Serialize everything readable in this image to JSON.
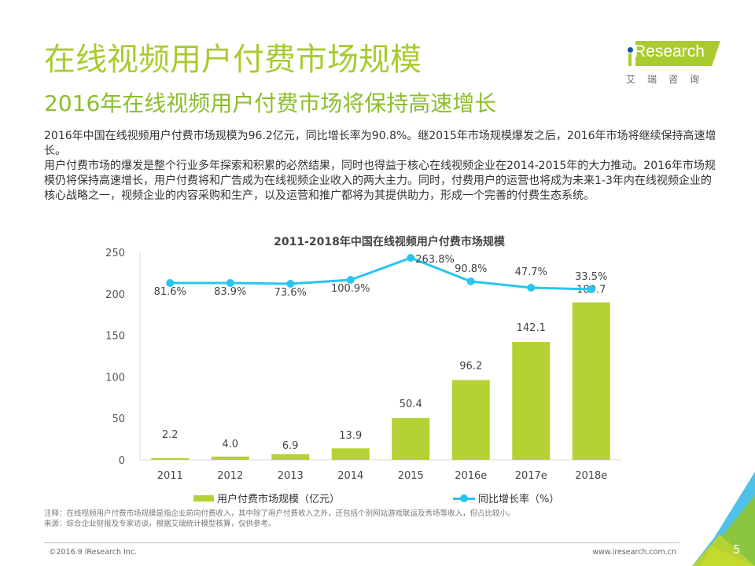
{
  "header": {
    "title": "在线视频用户付费市场规模",
    "subtitle": "2016年在线视频用户付费市场将保持高速增长"
  },
  "logo": {
    "text": "Research",
    "i_letter": "i",
    "cn": "艾瑞咨询",
    "icon": "iresearch-logo-icon"
  },
  "body": {
    "paragraphs": [
      "2016年中国在线视频用户付费市场规模为96.2亿元，同比增长率为90.8%。继2015年市场规模爆发之后，2016年市场将继续保持高速增长。",
      "用户付费市场的爆发是整个行业多年探索和积累的必然结果，同时也得益于核心在线视频企业在2014-2015年的大力推动。2016年市场规模仍将保持高速增长，用户付费将和广告成为在线视频企业收入的两大主力。同时，付费用户的运营也将成为未来1-3年内在线视频企业的核心战略之一，视频企业的内容采购和生产，以及运营和推广都将为其提供助力，形成一个完善的付费生态系统。"
    ]
  },
  "chart_data": {
    "type": "bar",
    "title": "2011-2018年中国在线视频用户付费市场规模",
    "categories": [
      "2011",
      "2012",
      "2013",
      "2014",
      "2015",
      "2016e",
      "2017e",
      "2018e"
    ],
    "series": [
      {
        "name": "用户付费市场规模（亿元）",
        "type": "bar",
        "color": "#b4d234",
        "values": [
          2.2,
          4.0,
          6.9,
          13.9,
          50.4,
          96.2,
          142.1,
          189.7
        ],
        "labels": [
          "2.2",
          "4.0",
          "6.9",
          "13.9",
          "50.4",
          "96.2",
          "142.1",
          "189.7"
        ]
      },
      {
        "name": "同比增长率（%）",
        "type": "line",
        "color": "#29c5ef",
        "values": [
          81.6,
          83.9,
          73.6,
          100.9,
          263.8,
          90.8,
          47.7,
          33.5
        ],
        "labels": [
          "81.6%",
          "83.9%",
          "73.6%",
          "100.9%",
          "263.8%",
          "90.8%",
          "47.7%",
          "33.5%"
        ]
      }
    ],
    "y_axis": {
      "ticks": [
        "0",
        "50",
        "100",
        "150",
        "200",
        "250"
      ],
      "ylim": [
        0,
        250
      ]
    },
    "grid": false,
    "legend": "bottom"
  },
  "notes": {
    "note": "注释：在线视频用户付费市场规模是指企业前向付费收入，其中除了用户付费收入之外，还包括个别网站游戏联运及秀场等收入，但占比较小。",
    "source": "来源：综合企业财报及专家访谈，根据艾瑞统计模型核算，仅供参考。"
  },
  "footer": {
    "copyright": "©2016.9 iResearch Inc.",
    "website": "www.iresearch.com.cn",
    "page_number": "5"
  }
}
